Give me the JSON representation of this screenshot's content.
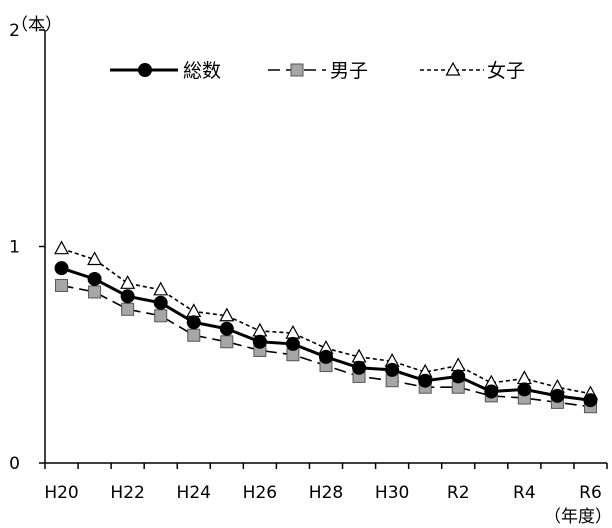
{
  "chart_data": {
    "type": "line",
    "categories": [
      "H20",
      "H21",
      "H22",
      "H23",
      "H24",
      "H25",
      "H26",
      "H27",
      "H28",
      "H29",
      "H30",
      "R1",
      "R2",
      "R3",
      "R4",
      "R5",
      "R6"
    ],
    "x_tick_labels": [
      "H20",
      "",
      "H22",
      "",
      "H24",
      "",
      "H26",
      "",
      "H28",
      "",
      "H30",
      "",
      "R2",
      "",
      "R4",
      "",
      "R6"
    ],
    "y_unit": "（本）",
    "x_unit": "（年度）",
    "ylim": [
      0,
      2
    ],
    "y_ticks": [
      0,
      1,
      2
    ],
    "grid": false,
    "legend_position": "top",
    "series": [
      {
        "name": "総数",
        "style": "solid",
        "marker": "circle",
        "color": "#000000",
        "values": [
          0.9,
          0.85,
          0.77,
          0.74,
          0.65,
          0.62,
          0.56,
          0.55,
          0.49,
          0.44,
          0.43,
          0.38,
          0.4,
          0.33,
          0.34,
          0.31,
          0.29
        ]
      },
      {
        "name": "男子",
        "style": "dashed",
        "marker": "square",
        "color": "#000000",
        "marker_fill": "#a6a6a6",
        "values": [
          0.82,
          0.79,
          0.71,
          0.68,
          0.59,
          0.56,
          0.52,
          0.5,
          0.45,
          0.4,
          0.38,
          0.35,
          0.35,
          0.31,
          0.3,
          0.28,
          0.26
        ]
      },
      {
        "name": "女子",
        "style": "dotted",
        "marker": "triangle",
        "color": "#000000",
        "marker_fill": "#ffffff",
        "values": [
          0.99,
          0.94,
          0.83,
          0.8,
          0.7,
          0.68,
          0.61,
          0.6,
          0.53,
          0.49,
          0.47,
          0.42,
          0.45,
          0.37,
          0.39,
          0.35,
          0.32
        ]
      }
    ]
  }
}
